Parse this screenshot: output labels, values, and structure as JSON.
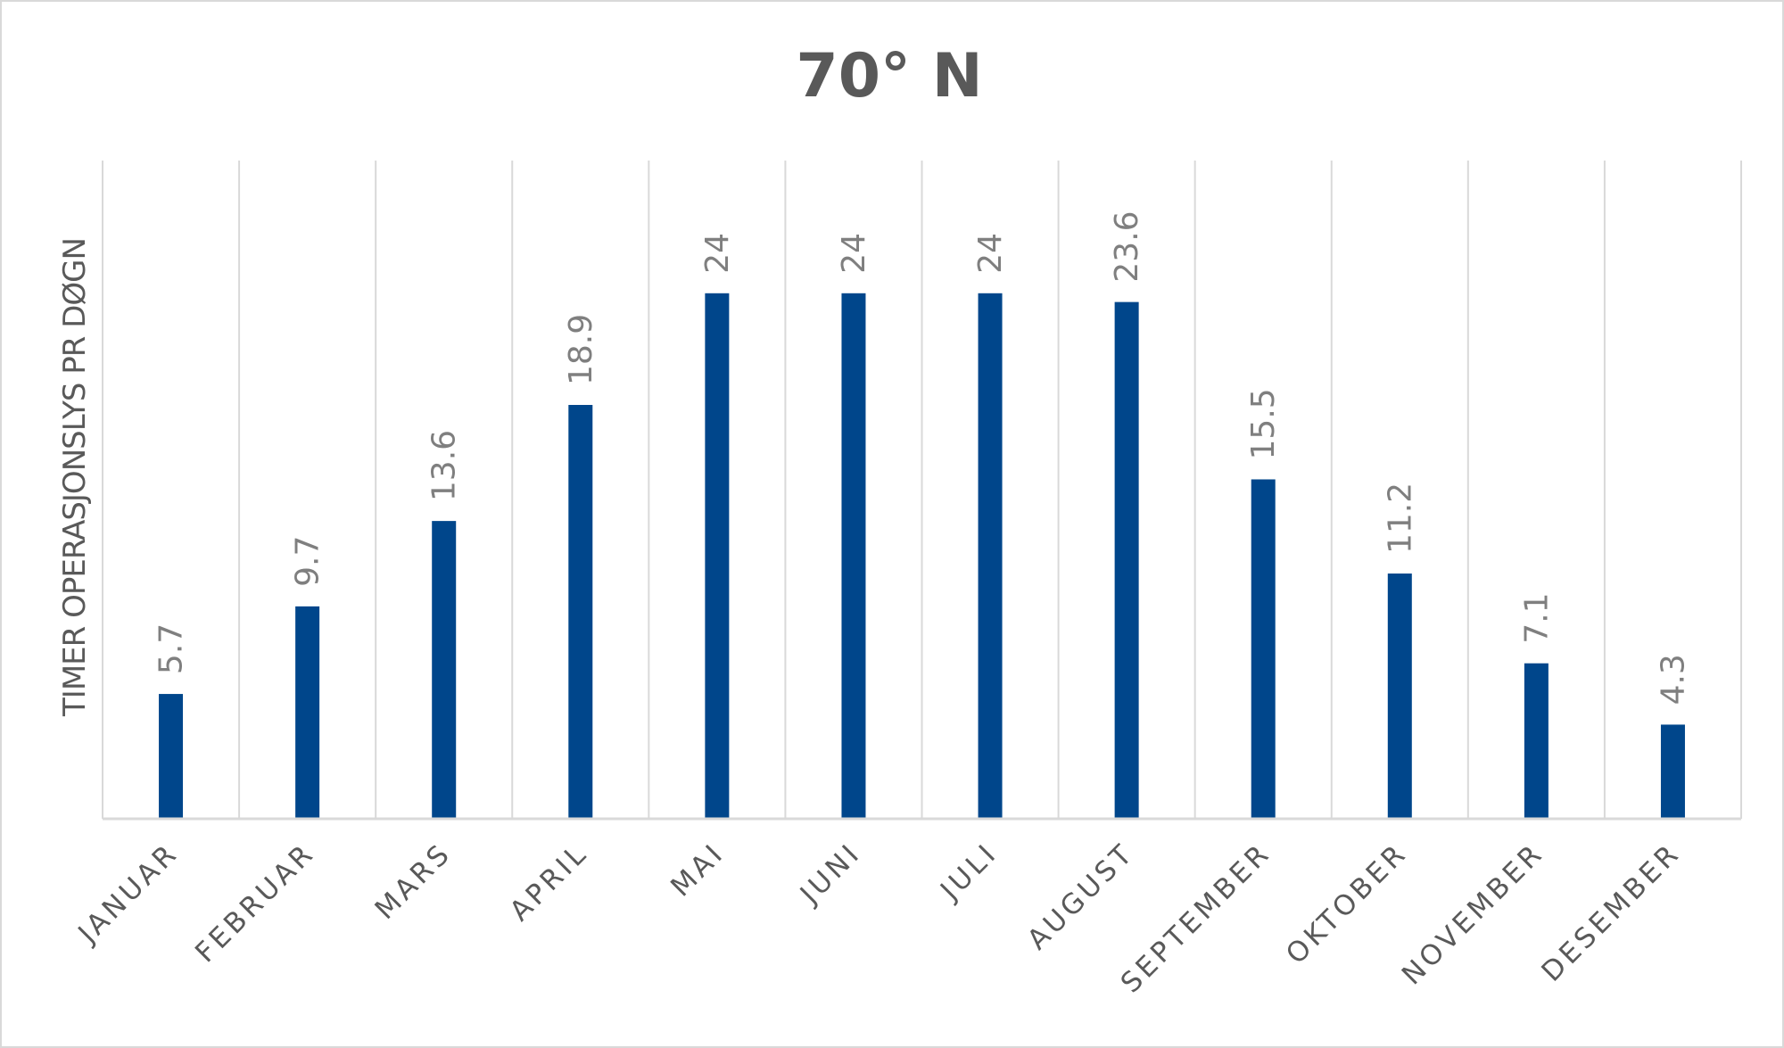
{
  "chart_data": {
    "type": "bar",
    "title": "70° N",
    "ylabel": "TIMER OPERASJONSLYS PR DØGN",
    "xlabel": "",
    "categories": [
      "JANUAR",
      "FEBRUAR",
      "MARS",
      "APRIL",
      "MAI",
      "JUNI",
      "JULI",
      "AUGUST",
      "SEPTEMBER",
      "OKTOBER",
      "NOVEMBER",
      "DESEMBER"
    ],
    "values": [
      5.7,
      9.7,
      13.6,
      18.9,
      24,
      24,
      24,
      23.6,
      15.5,
      11.2,
      7.1,
      4.3
    ],
    "ylim": [
      0,
      30
    ],
    "grid": "vertical",
    "legend": "none",
    "bar_color": "#00468b",
    "gridline_color": "#d9d9d9"
  }
}
